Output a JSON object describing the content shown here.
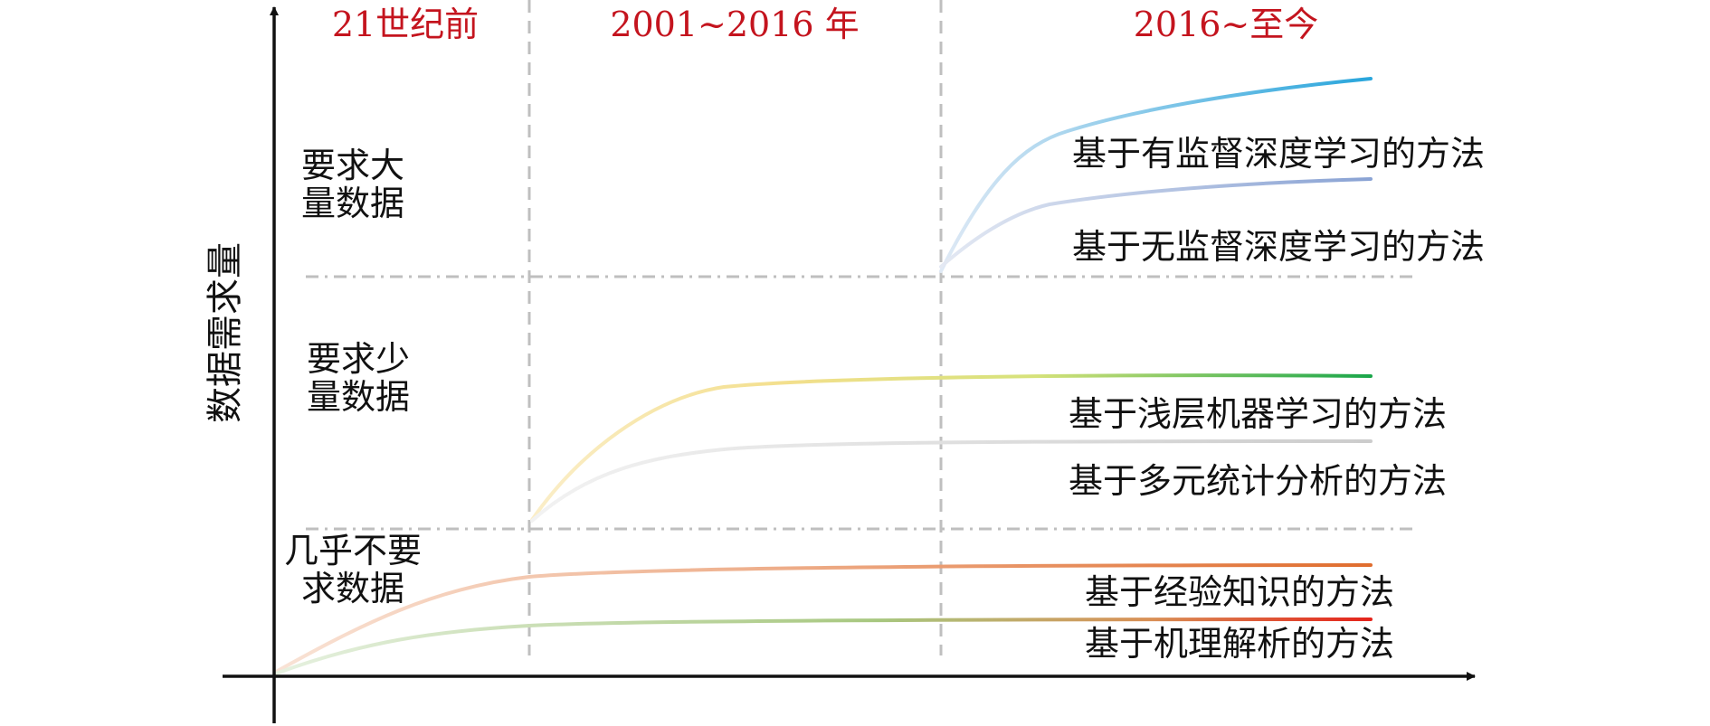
{
  "y_axis_label": "数据需求量",
  "periods": [
    "21世纪前",
    "2001~2016 年",
    "2016~至今"
  ],
  "levels": [
    {
      "line1": "要求大",
      "line2": "量数据"
    },
    {
      "line1": "要求少",
      "line2": "量数据"
    },
    {
      "line1": "几乎不要",
      "line2": "求数据"
    }
  ],
  "methods": [
    {
      "label": "基于有监督深度学习的方法",
      "color_start": "#dfe9f5",
      "color_end": "#2aa6dc"
    },
    {
      "label": "基于无监督深度学习的方法",
      "color_start": "#e4e9f3",
      "color_end": "#8aa3d4"
    },
    {
      "label": "基于浅层机器学习的方法",
      "color_start": "#fbeec9",
      "color_end": "#1aa64a"
    },
    {
      "label": "基于多元统计分析的方法",
      "color_start": "#f2f2f2",
      "color_end": "#cccccc"
    },
    {
      "label": "基于经验知识的方法",
      "color_start": "#f9e3d6",
      "color_end": "#e06d2e"
    },
    {
      "label": "基于机理解析的方法",
      "color_start": "#e6f1e0",
      "color_end": "#e4231b"
    }
  ],
  "colors": {
    "period_text": "#c4141e",
    "axis": "#111111",
    "divider": "#bfbfbf"
  }
}
